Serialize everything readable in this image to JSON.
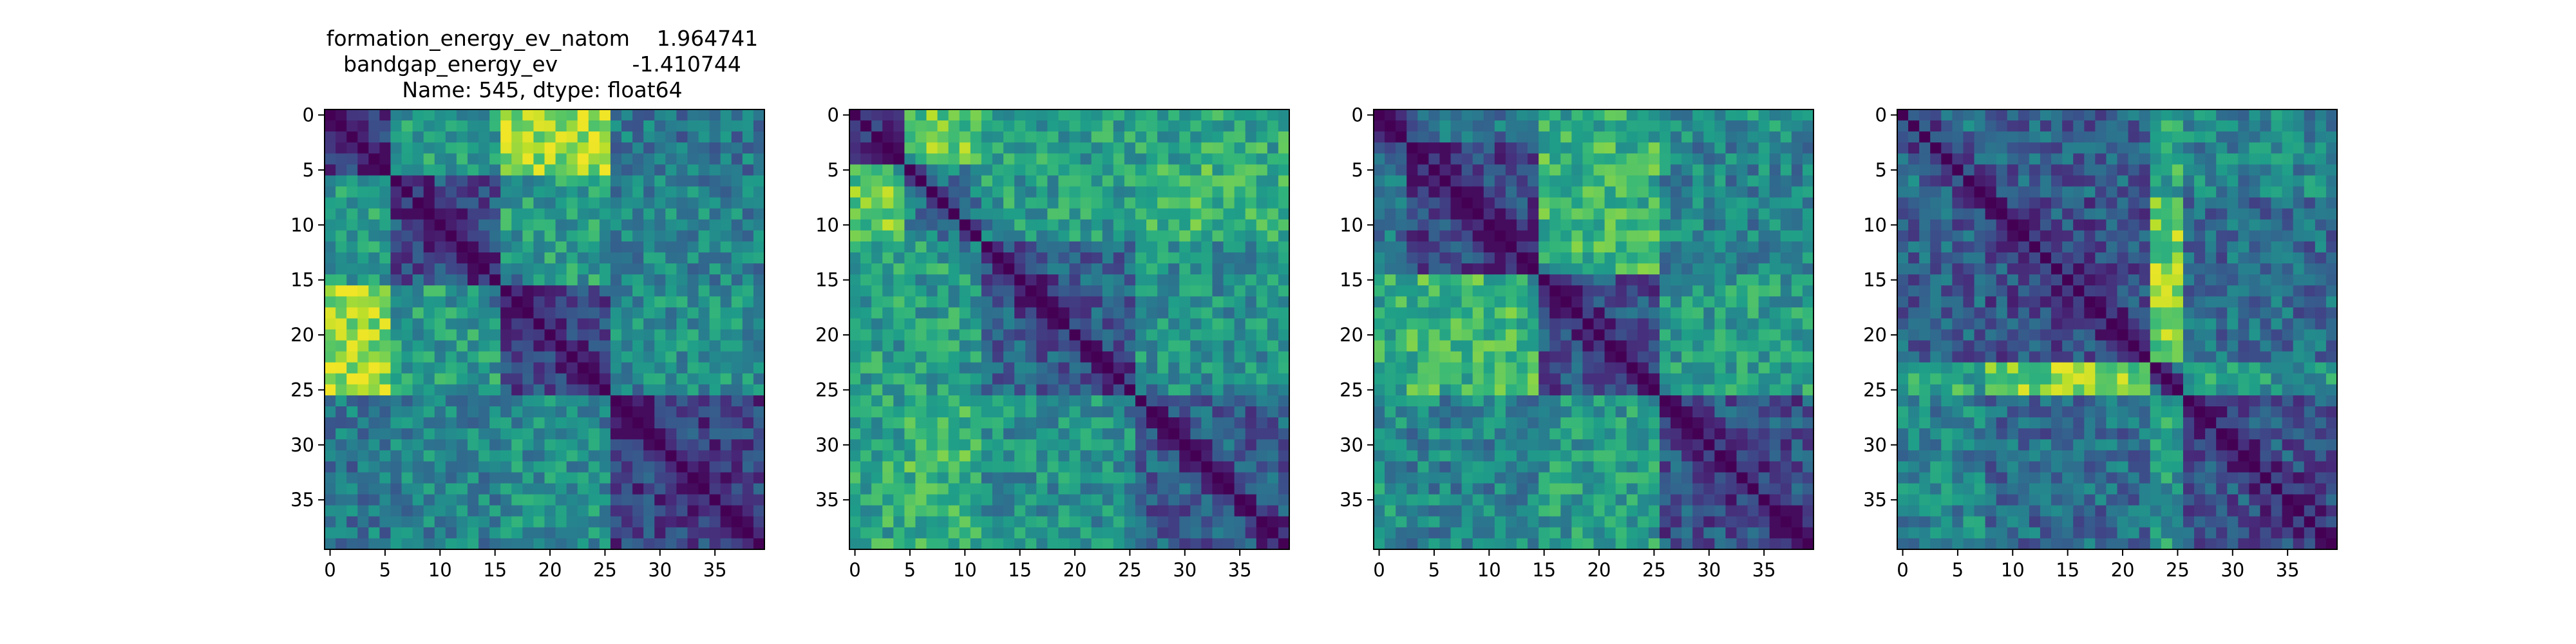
{
  "figure": {
    "title_lines": [
      "formation_energy_ev_natom    1.964741",
      "bandgap_energy_ev           -1.410744",
      "Name: 545, dtype: float64"
    ]
  },
  "colormap": {
    "name": "viridis",
    "stops": [
      "#440154",
      "#482878",
      "#3e4989",
      "#31688e",
      "#26828e",
      "#1f9e89",
      "#35b779",
      "#6ece58",
      "#b5de2b",
      "#fde725"
    ]
  },
  "chart_data": [
    {
      "type": "heatmap",
      "title": "",
      "xlabel": "",
      "ylabel": "",
      "matrix_size": 40,
      "value_range": [
        0,
        1
      ],
      "diagonal_value": 0,
      "xticks": [
        0,
        5,
        10,
        15,
        20,
        25,
        30,
        35
      ],
      "yticks": [
        0,
        5,
        10,
        15,
        20,
        25,
        30,
        35
      ],
      "row_labels": [
        0,
        5,
        10,
        15,
        20,
        25,
        30,
        35
      ],
      "col_labels": [
        0,
        5,
        10,
        15,
        20,
        25,
        30,
        35
      ],
      "grid": false,
      "blocks": [
        0,
        6,
        16,
        26,
        40
      ],
      "block_values": [
        [
          0.2,
          0.55,
          0.85,
          0.4
        ],
        [
          0.55,
          0.25,
          0.55,
          0.45
        ],
        [
          0.85,
          0.55,
          0.25,
          0.5
        ],
        [
          0.4,
          0.45,
          0.5,
          0.2
        ]
      ]
    },
    {
      "type": "heatmap",
      "title": "",
      "xlabel": "",
      "ylabel": "",
      "matrix_size": 40,
      "value_range": [
        0,
        1
      ],
      "diagonal_value": 0,
      "xticks": [
        0,
        5,
        10,
        15,
        20,
        25,
        30,
        35
      ],
      "yticks": [
        0,
        5,
        10,
        15,
        20,
        25,
        30,
        35
      ],
      "row_labels": [
        0,
        5,
        10,
        15,
        20,
        25,
        30,
        35
      ],
      "col_labels": [
        0,
        5,
        10,
        15,
        20,
        25,
        30,
        35
      ],
      "grid": false,
      "blocks": [
        0,
        5,
        12,
        26,
        40
      ],
      "block_values": [
        [
          0.3,
          0.75,
          0.55,
          0.6
        ],
        [
          0.75,
          0.45,
          0.55,
          0.65
        ],
        [
          0.55,
          0.55,
          0.3,
          0.5
        ],
        [
          0.6,
          0.65,
          0.5,
          0.3
        ]
      ]
    },
    {
      "type": "heatmap",
      "title": "",
      "xlabel": "",
      "ylabel": "",
      "matrix_size": 40,
      "value_range": [
        0,
        1
      ],
      "diagonal_value": 0,
      "xticks": [
        0,
        5,
        10,
        15,
        20,
        25,
        30,
        35
      ],
      "yticks": [
        0,
        5,
        10,
        15,
        20,
        25,
        30,
        35
      ],
      "row_labels": [
        0,
        5,
        10,
        15,
        20,
        25,
        30,
        35
      ],
      "col_labels": [
        0,
        5,
        10,
        15,
        20,
        25,
        30,
        35
      ],
      "grid": false,
      "blocks": [
        0,
        3,
        15,
        26,
        40
      ],
      "block_values": [
        [
          0.3,
          0.4,
          0.6,
          0.5
        ],
        [
          0.4,
          0.2,
          0.65,
          0.45
        ],
        [
          0.6,
          0.65,
          0.25,
          0.55
        ],
        [
          0.5,
          0.45,
          0.55,
          0.25
        ]
      ]
    },
    {
      "type": "heatmap",
      "title": "",
      "xlabel": "",
      "ylabel": "",
      "matrix_size": 40,
      "value_range": [
        0,
        1
      ],
      "diagonal_value": 0,
      "xticks": [
        0,
        5,
        10,
        15,
        20,
        25,
        30,
        35
      ],
      "yticks": [
        0,
        5,
        10,
        15,
        20,
        25,
        30,
        35
      ],
      "row_labels": [
        0,
        5,
        10,
        15,
        20,
        25,
        30,
        35
      ],
      "col_labels": [
        0,
        5,
        10,
        15,
        20,
        25,
        30,
        35
      ],
      "grid": false,
      "blocks": [
        0,
        8,
        23,
        26,
        40
      ],
      "block_values": [
        [
          0.35,
          0.3,
          0.6,
          0.45
        ],
        [
          0.3,
          0.25,
          0.8,
          0.35
        ],
        [
          0.6,
          0.8,
          0.4,
          0.55
        ],
        [
          0.45,
          0.35,
          0.55,
          0.25
        ]
      ]
    }
  ]
}
